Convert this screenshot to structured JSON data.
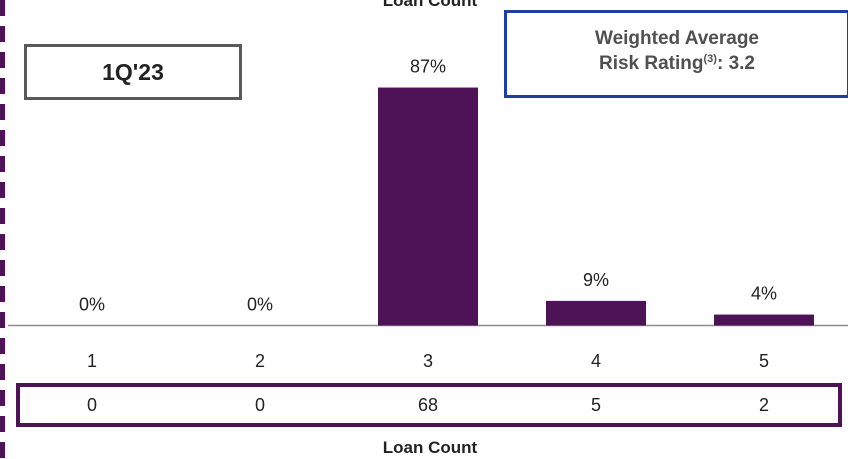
{
  "top_caption": "Loan Count",
  "period": "1Q'23",
  "weighted_average": {
    "line1": "Weighted Average",
    "line2_prefix": "Risk Rating",
    "superscript": "(3)",
    "line2_suffix": ": 3.2"
  },
  "chart_data": {
    "type": "bar",
    "categories": [
      "1",
      "2",
      "3",
      "4",
      "5"
    ],
    "values": [
      0,
      0,
      87,
      9,
      4
    ],
    "value_labels": [
      "0%",
      "0%",
      "87%",
      "9%",
      "4%"
    ],
    "ylim": [
      0,
      100
    ],
    "bar_color": "#4e1257",
    "grid": false
  },
  "loan_counts": [
    "0",
    "0",
    "68",
    "5",
    "2"
  ],
  "bottom_caption": "Loan Count",
  "colors": {
    "accent": "#4e1257",
    "box_blue": "#1f3f9f",
    "box_gray": "#595959"
  }
}
